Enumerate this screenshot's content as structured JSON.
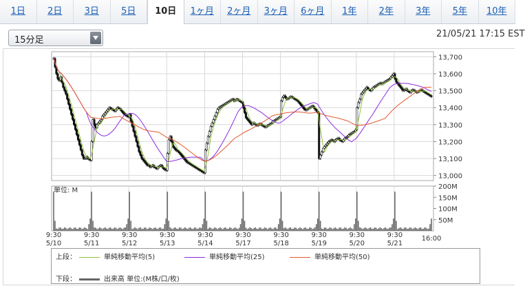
{
  "tabs": [
    "1日",
    "2日",
    "3日",
    "5日",
    "10日",
    "1ヶ月",
    "2ヶ月",
    "3ヶ月",
    "6ヶ月",
    "1年",
    "2年",
    "3年",
    "5年",
    "10年"
  ],
  "active_tab": "10日",
  "interval_select": {
    "value": "15分足"
  },
  "timestamp": "21/05/21 17:15 EST",
  "legend": {
    "upper_label": "上段：",
    "lower_label": "下段：",
    "ma5": "単純移動平均(5)",
    "ma25": "単純移動平均(25)",
    "ma50": "単純移動平均(50)",
    "volume": "出来高 単位:(M株/口/枚)"
  },
  "colors": {
    "price": "#111111",
    "ma5": "#8fc13b",
    "ma25": "#8a2be2",
    "ma50": "#e2572c",
    "volume": "#666666",
    "grid": "#d8d8d8"
  },
  "chart_data": {
    "type": "candlestick",
    "price_panel": {
      "yticks": [
        "13,700",
        "13,600",
        "13,500",
        "13,400",
        "13,300",
        "13,200",
        "13,100",
        "13,000"
      ],
      "ylim": [
        12970,
        13730
      ],
      "days": [
        {
          "date": "5/10",
          "time": "9:30",
          "close": [
            13690,
            13640,
            13600,
            13570,
            13560,
            13580,
            13550,
            13520,
            13500,
            13480,
            13450,
            13420,
            13390,
            13360,
            13330,
            13300,
            13270,
            13240,
            13210,
            13180,
            13150,
            13120,
            13100,
            13100,
            13110,
            13100,
            13095,
            13090
          ]
        },
        {
          "date": "5/11",
          "time": "9:30",
          "close": [
            13200,
            13330,
            13300,
            13280,
            13300,
            13310,
            13320,
            13330,
            13350,
            13360,
            13370,
            13380,
            13390,
            13400,
            13395,
            13390,
            13385,
            13380,
            13390,
            13400,
            13395,
            13390,
            13380,
            13370,
            13360,
            13355,
            13350,
            13345
          ]
        },
        {
          "date": "5/12",
          "time": "9:30",
          "close": [
            13360,
            13320,
            13290,
            13260,
            13230,
            13200,
            13170,
            13140,
            13120,
            13100,
            13090,
            13080,
            13070,
            13060,
            13060,
            13050,
            13055,
            13060,
            13050,
            13045,
            13040,
            13050,
            13055,
            13060,
            13050,
            13040,
            13035,
            13030
          ]
        },
        {
          "date": "5/13",
          "time": "9:30",
          "close": [
            13130,
            13210,
            13230,
            13200,
            13170,
            13160,
            13150,
            13145,
            13140,
            13130,
            13120,
            13110,
            13100,
            13090,
            13080,
            13075,
            13070,
            13065,
            13060,
            13055,
            13050,
            13045,
            13040,
            13035,
            13030,
            13025,
            13020,
            13015
          ]
        },
        {
          "date": "5/14",
          "time": "9:30",
          "close": [
            13150,
            13190,
            13230,
            13260,
            13290,
            13310,
            13330,
            13350,
            13370,
            13390,
            13400,
            13405,
            13410,
            13415,
            13420,
            13425,
            13430,
            13435,
            13440,
            13445,
            13450,
            13440,
            13445,
            13450,
            13445,
            13440,
            13435,
            13430
          ]
        },
        {
          "date": "5/17",
          "time": "9:30",
          "close": [
            13400,
            13370,
            13340,
            13330,
            13320,
            13310,
            13300,
            13310,
            13305,
            13300,
            13295,
            13300,
            13305,
            13300,
            13295,
            13290,
            13285,
            13290,
            13295,
            13300,
            13305,
            13310,
            13320,
            13325,
            13330,
            13335,
            13340,
            13345
          ]
        },
        {
          "date": "5/18",
          "time": "9:30",
          "close": [
            13440,
            13460,
            13470,
            13460,
            13450,
            13455,
            13460,
            13465,
            13460,
            13455,
            13450,
            13445,
            13440,
            13430,
            13420,
            13410,
            13400,
            13390,
            13385,
            13390,
            13395,
            13400,
            13405,
            13410,
            13400,
            13390,
            13380,
            13370
          ]
        },
        {
          "date": "5/19",
          "time": "9:30",
          "close": [
            13100,
            13120,
            13140,
            13160,
            13170,
            13180,
            13190,
            13200,
            13205,
            13210,
            13205,
            13200,
            13210,
            13215,
            13220,
            13210,
            13205,
            13200,
            13210,
            13220,
            13225,
            13230,
            13240,
            13245,
            13250,
            13255,
            13260,
            13270
          ]
        },
        {
          "date": "5/20",
          "time": "9:30",
          "close": [
            13400,
            13430,
            13450,
            13480,
            13490,
            13500,
            13510,
            13520,
            13510,
            13505,
            13500,
            13510,
            13520,
            13525,
            13530,
            13535,
            13540,
            13545,
            13540,
            13545,
            13550,
            13555,
            13560,
            13565,
            13570,
            13580,
            13590,
            13600
          ]
        },
        {
          "date": "5/21",
          "time": "9:30",
          "close": [
            13570,
            13550,
            13540,
            13530,
            13520,
            13510,
            13500,
            13505,
            13510,
            13500,
            13495,
            13490,
            13500,
            13505,
            13500,
            13495,
            13490,
            13495,
            13500,
            13505,
            13500,
            13495,
            13490,
            13485,
            13480,
            13475,
            13470,
            13465
          ]
        }
      ],
      "end_label": "16:00"
    },
    "volume_panel": {
      "unit_label": "単位: M",
      "yticks": [
        "200M",
        "150M",
        "100M",
        "50M"
      ],
      "ylim": [
        0,
        200
      ],
      "spike": 175,
      "base": 12
    }
  }
}
